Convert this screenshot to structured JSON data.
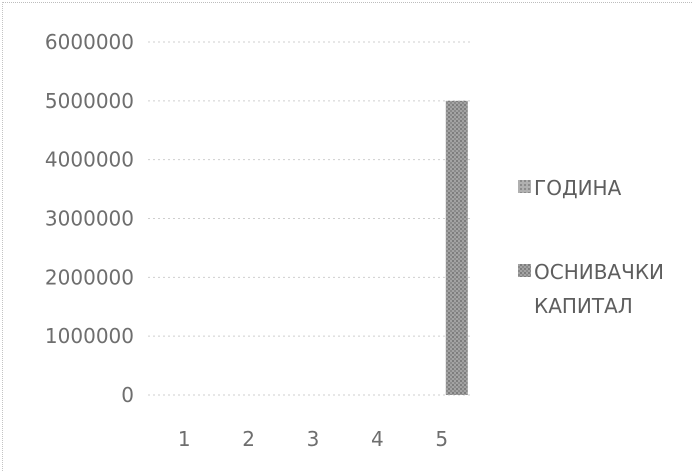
{
  "chart_data": {
    "type": "bar",
    "categories": [
      "1",
      "2",
      "3",
      "4",
      "5"
    ],
    "series": [
      {
        "name": "ГОДИНА",
        "values": [
          0,
          0,
          0,
          0,
          0
        ],
        "color": "#9a9a9a"
      },
      {
        "name": "ОСНИВАЧКИ КАПИТАЛ",
        "values": [
          0,
          0,
          0,
          0,
          5000000
        ],
        "color": "#8e8e8e"
      }
    ],
    "legend_lines": [
      [
        "ГОДИНА"
      ],
      [
        "ОСНИВАЧКИ",
        "КАПИТАЛ"
      ]
    ],
    "yticks": [
      "0",
      "1000000",
      "2000000",
      "3000000",
      "4000000",
      "5000000",
      "6000000"
    ],
    "ylim": [
      0,
      6000000
    ],
    "grid": true,
    "legend_position": "right",
    "title": "",
    "xlabel": "",
    "ylabel": ""
  }
}
